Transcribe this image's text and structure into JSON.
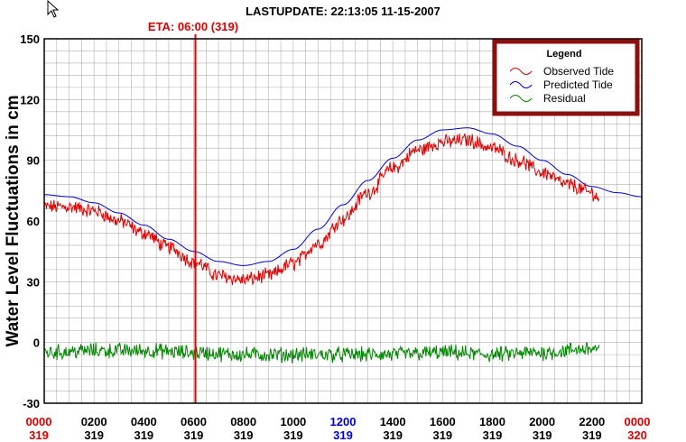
{
  "header": {
    "last_update": "LASTUPDATE: 22:13:05  11-15-2007",
    "eta": "ETA: 06:00 (319)"
  },
  "icons": {
    "cursor": "mouse-pointer-icon"
  },
  "colors": {
    "observed": "#dd0000",
    "predicted": "#0000cc",
    "residual": "#008800",
    "eta_line": "#ee0000",
    "legend_border": "#8b1010",
    "tick_red": "#dd0000",
    "tick_blue": "#0000cc",
    "grid": "#b0b0b0"
  },
  "chart_data": {
    "type": "line",
    "ylabel": "Water Level Fluctuations in cm",
    "ylim": [
      -30,
      150
    ],
    "yticks": [
      -30,
      0,
      30,
      60,
      90,
      120,
      150
    ],
    "xlim": [
      0,
      24
    ],
    "grid": true,
    "legend": {
      "title": "Legend",
      "position": "top-right",
      "items": [
        "Observed Tide",
        "Predicted Tide",
        "Residual"
      ]
    },
    "x_ticks": [
      {
        "x": 0,
        "time": "0000",
        "day": "319",
        "color": "red"
      },
      {
        "x": 2,
        "time": "0200",
        "day": "319",
        "color": "black"
      },
      {
        "x": 4,
        "time": "0400",
        "day": "319",
        "color": "black"
      },
      {
        "x": 6,
        "time": "0600",
        "day": "319",
        "color": "black"
      },
      {
        "x": 8,
        "time": "0800",
        "day": "319",
        "color": "black"
      },
      {
        "x": 10,
        "time": "1000",
        "day": "319",
        "color": "black"
      },
      {
        "x": 12,
        "time": "1200",
        "day": "319",
        "color": "blue"
      },
      {
        "x": 14,
        "time": "1400",
        "day": "319",
        "color": "black"
      },
      {
        "x": 16,
        "time": "1600",
        "day": "319",
        "color": "black"
      },
      {
        "x": 18,
        "time": "1800",
        "day": "319",
        "color": "black"
      },
      {
        "x": 20,
        "time": "2000",
        "day": "319",
        "color": "black"
      },
      {
        "x": 22,
        "time": "2200",
        "day": "319",
        "color": "black"
      },
      {
        "x": 24,
        "time": "0000",
        "day": "320",
        "color": "red"
      }
    ],
    "eta_x": 6.0,
    "series": [
      {
        "name": "Predicted Tide",
        "x": [
          0,
          1,
          2,
          3,
          4,
          5,
          6,
          7,
          8,
          9,
          10,
          11,
          12,
          13,
          14,
          15,
          16,
          17,
          18,
          19,
          20,
          21,
          22,
          23,
          24
        ],
        "y": [
          73,
          72,
          69,
          64,
          58,
          51,
          45,
          40,
          38,
          40,
          46,
          56,
          68,
          80,
          91,
          100,
          105,
          106,
          103,
          97,
          90,
          83,
          77,
          74,
          72
        ]
      },
      {
        "name": "Observed Tide",
        "x": [
          0,
          1,
          2,
          3,
          4,
          5,
          6,
          7,
          8,
          9,
          10,
          11,
          12,
          13,
          14,
          15,
          16,
          17,
          18,
          19,
          20,
          21,
          22,
          22.3
        ],
        "y": [
          67,
          67,
          65,
          60,
          54,
          47,
          40,
          33,
          31,
          33,
          39,
          49,
          61,
          74,
          86,
          95,
          99,
          100,
          96,
          90,
          84,
          78,
          74,
          71
        ]
      },
      {
        "name": "Residual",
        "x": [
          0,
          2,
          4,
          6,
          8,
          10,
          12,
          14,
          16,
          18,
          20,
          22,
          22.3
        ],
        "y": [
          -5,
          -4,
          -4,
          -5,
          -6,
          -6,
          -6,
          -6,
          -5,
          -6,
          -5,
          -3,
          -3
        ]
      }
    ]
  }
}
